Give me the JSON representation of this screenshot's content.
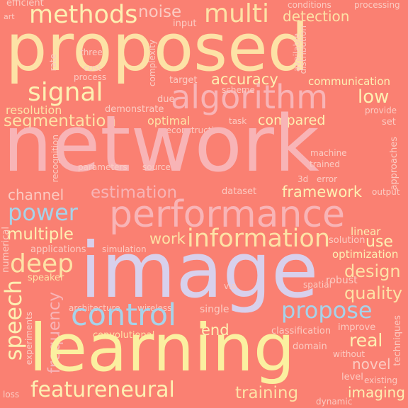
{
  "palette": {
    "background": "#fa8072",
    "cream": "#fdf0b2",
    "yellow": "#fbf0a0",
    "peach": "#fde2a6",
    "blue": "#a6d3ea",
    "lavender": "#d8d0ec",
    "pink": "#f8b4b6",
    "light": "#fbcbc2",
    "salmon_light": "#fba89a"
  },
  "words": [
    {
      "text": "efficient",
      "color": "light"
    },
    {
      "text": "art",
      "color": "light"
    },
    {
      "text": "methods",
      "color": "cream"
    },
    {
      "text": "noise",
      "color": "light"
    },
    {
      "text": "multi",
      "color": "peach"
    },
    {
      "text": "detection",
      "color": "peach"
    },
    {
      "text": "conditions",
      "color": "light"
    },
    {
      "text": "processing",
      "color": "light"
    },
    {
      "text": "input",
      "color": "light"
    },
    {
      "text": "proposed",
      "color": "peach"
    },
    {
      "text": "three",
      "color": "light"
    },
    {
      "text": "cost",
      "color": "light"
    },
    {
      "text": "rate",
      "color": "light"
    },
    {
      "text": "process",
      "color": "light"
    },
    {
      "text": "available",
      "color": "light"
    },
    {
      "text": "complexity",
      "color": "light"
    },
    {
      "text": "distribution",
      "color": "light"
    },
    {
      "text": "accuracy",
      "color": "cream"
    },
    {
      "text": "target",
      "color": "light"
    },
    {
      "text": "communication",
      "color": "cream"
    },
    {
      "text": "signal",
      "color": "cream"
    },
    {
      "text": "algorithm",
      "color": "pink"
    },
    {
      "text": "scheme",
      "color": "light"
    },
    {
      "text": "low",
      "color": "cream"
    },
    {
      "text": "resolution",
      "color": "peach"
    },
    {
      "text": "due",
      "color": "light"
    },
    {
      "text": "demonstrate",
      "color": "light"
    },
    {
      "text": "segmentation",
      "color": "peach"
    },
    {
      "text": "provide",
      "color": "light"
    },
    {
      "text": "optimal",
      "color": "peach"
    },
    {
      "text": "task",
      "color": "light"
    },
    {
      "text": "compared",
      "color": "cream"
    },
    {
      "text": "set",
      "color": "light"
    },
    {
      "text": "reconstruction",
      "color": "light"
    },
    {
      "text": "network",
      "color": "pink"
    },
    {
      "text": "recognition",
      "color": "light"
    },
    {
      "text": "machine",
      "color": "light"
    },
    {
      "text": "approaches",
      "color": "light"
    },
    {
      "text": "parameters",
      "color": "light"
    },
    {
      "text": "source",
      "color": "light"
    },
    {
      "text": "trained",
      "color": "light"
    },
    {
      "text": "3d",
      "color": "light"
    },
    {
      "text": "error",
      "color": "light"
    },
    {
      "text": "channel",
      "color": "light"
    },
    {
      "text": "estimation",
      "color": "pink"
    },
    {
      "text": "dataset",
      "color": "light"
    },
    {
      "text": "framework",
      "color": "cream"
    },
    {
      "text": "output",
      "color": "light"
    },
    {
      "text": "power",
      "color": "blue"
    },
    {
      "text": "performance",
      "color": "pink"
    },
    {
      "text": "multiple",
      "color": "cream"
    },
    {
      "text": "numerical",
      "color": "light"
    },
    {
      "text": "work",
      "color": "peach"
    },
    {
      "text": "information",
      "color": "peach"
    },
    {
      "text": "linear",
      "color": "cream"
    },
    {
      "text": "solution",
      "color": "light"
    },
    {
      "text": "use",
      "color": "cream"
    },
    {
      "text": "applications",
      "color": "light"
    },
    {
      "text": "simulation",
      "color": "light"
    },
    {
      "text": "optimization",
      "color": "cream"
    },
    {
      "text": "deep",
      "color": "peach"
    },
    {
      "text": "image",
      "color": "lavender"
    },
    {
      "text": "design",
      "color": "peach"
    },
    {
      "text": "speaker",
      "color": "peach"
    },
    {
      "text": "robust",
      "color": "light"
    },
    {
      "text": "spatial",
      "color": "light"
    },
    {
      "text": "via",
      "color": "light"
    },
    {
      "text": "quality",
      "color": "peach"
    },
    {
      "text": "speech",
      "color": "cream"
    },
    {
      "text": "architecture",
      "color": "light"
    },
    {
      "text": "wireless",
      "color": "light"
    },
    {
      "text": "control",
      "color": "blue"
    },
    {
      "text": "single",
      "color": "light"
    },
    {
      "text": "propose",
      "color": "blue"
    },
    {
      "text": "frequency",
      "color": "pink"
    },
    {
      "text": "experiments",
      "color": "light"
    },
    {
      "text": "convolutional",
      "color": "peach"
    },
    {
      "text": "end",
      "color": "cream"
    },
    {
      "text": "classification",
      "color": "light"
    },
    {
      "text": "improve",
      "color": "light"
    },
    {
      "text": "learning",
      "color": "yellow"
    },
    {
      "text": "real",
      "color": "cream"
    },
    {
      "text": "domain",
      "color": "light"
    },
    {
      "text": "techniques",
      "color": "light"
    },
    {
      "text": "novel",
      "color": "light"
    },
    {
      "text": "without",
      "color": "light"
    },
    {
      "text": "level",
      "color": "light"
    },
    {
      "text": "existing",
      "color": "light"
    },
    {
      "text": "featureneural",
      "color": "cream"
    },
    {
      "text": "training",
      "color": "peach"
    },
    {
      "text": "imaging",
      "color": "cream"
    },
    {
      "text": "dynamic",
      "color": "light"
    },
    {
      "text": "loss",
      "color": "light"
    }
  ]
}
